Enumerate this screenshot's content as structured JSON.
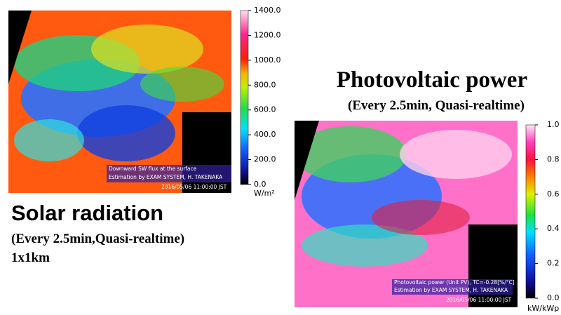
{
  "left_panel": {
    "title": "Solar radiation",
    "subtitle": "(Every 2.5min,Quasi-realtime)",
    "resolution": "1x1km",
    "overlay": [
      "Downward SW flux at the surface",
      "Estimation by EXAM SYSTEM,  H. TAKENAKA"
    ],
    "timestamp": "2016/05/06 11:00:00 JST",
    "colorbar": {
      "lim": [
        0,
        1400
      ],
      "ticks": [
        {
          "value": 0,
          "label": "0.0"
        },
        {
          "value": 200,
          "label": "200.0"
        },
        {
          "value": 400,
          "label": "400.0"
        },
        {
          "value": 600,
          "label": "600.0"
        },
        {
          "value": 800,
          "label": "800.0"
        },
        {
          "value": 1000,
          "label": "1000.0"
        },
        {
          "value": 1200,
          "label": "1200.0"
        },
        {
          "value": 1400,
          "label": "1400.0"
        }
      ],
      "unit": "W/m²"
    }
  },
  "right_panel": {
    "title": "Photovoltaic power",
    "subtitle": "(Every 2.5min, Quasi-realtime)",
    "overlay": [
      "Photovoltaic power (Unit PV), TC=-0.28[%/°C]",
      "Estimation by EXAM SYSTEM, H. TAKENAKA"
    ],
    "timestamp": "2016/05/06 11:00:00 JST",
    "colorbar": {
      "lim": [
        0,
        1
      ],
      "ticks": [
        {
          "value": 0,
          "label": "0.0"
        },
        0.2,
        0.4,
        0.6,
        0.8,
        {
          "value": 1,
          "label": "1.0"
        }
      ],
      "unit": "kW/kWp"
    }
  }
}
